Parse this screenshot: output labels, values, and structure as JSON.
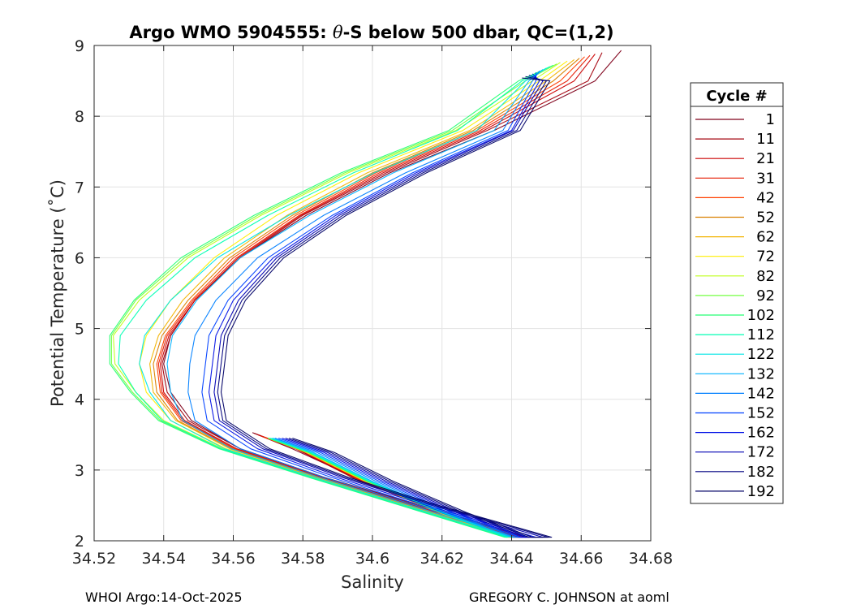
{
  "chart_data": {
    "type": "line",
    "title": "Argo WMO 5904555: θ-S below 500 dbar,  QC=(1,2)",
    "title_prefix": "Argo WMO 5904555: ",
    "title_theta": "θ",
    "title_suffix": "-S below 500 dbar,  QC=(1,2)",
    "xlabel": "Salinity",
    "ylabel": "Potential Temperature (˚C)",
    "xlim": [
      34.52,
      34.68
    ],
    "ylim": [
      2,
      9
    ],
    "x_ticks": [
      34.52,
      34.54,
      34.56,
      34.58,
      34.6,
      34.62,
      34.64,
      34.66,
      34.68
    ],
    "x_tick_labels": [
      "34.52",
      "34.54",
      "34.56",
      "34.58",
      "34.6",
      "34.62",
      "34.64",
      "34.66",
      "34.68"
    ],
    "y_ticks": [
      2,
      3,
      4,
      5,
      6,
      7,
      8,
      9
    ],
    "y_tick_labels": [
      "2",
      "3",
      "4",
      "5",
      "6",
      "7",
      "8",
      "9"
    ],
    "grid": true,
    "legend": {
      "title": "Cycle #",
      "placement": "right",
      "entries": [
        {
          "label": "1",
          "color": "#80001a"
        },
        {
          "label": "11",
          "color": "#a3000d"
        },
        {
          "label": "21",
          "color": "#cc0000"
        },
        {
          "label": "31",
          "color": "#e61a00"
        },
        {
          "label": "42",
          "color": "#ff4000"
        },
        {
          "label": "52",
          "color": "#d98000"
        },
        {
          "label": "62",
          "color": "#f2b300"
        },
        {
          "label": "72",
          "color": "#ffee00"
        },
        {
          "label": "82",
          "color": "#bfff1a"
        },
        {
          "label": "92",
          "color": "#73ff40"
        },
        {
          "label": "102",
          "color": "#26ff73"
        },
        {
          "label": "112",
          "color": "#00ffb3"
        },
        {
          "label": "122",
          "color": "#00e6e6"
        },
        {
          "label": "132",
          "color": "#00b3ff"
        },
        {
          "label": "142",
          "color": "#0080ff"
        },
        {
          "label": "152",
          "color": "#0040ff"
        },
        {
          "label": "162",
          "color": "#0010e6"
        },
        {
          "label": "172",
          "color": "#0000b3"
        },
        {
          "label": "182",
          "color": "#000080"
        },
        {
          "label": "192",
          "color": "#000066"
        }
      ]
    },
    "series": [
      {
        "name": "1",
        "x": [
          34.5655,
          34.577,
          34.597,
          34.6212,
          34.642,
          34.645,
          34.614,
          34.586,
          34.562,
          34.548,
          34.542,
          34.54,
          34.542,
          34.549,
          34.562,
          34.581,
          34.605,
          34.635,
          34.664,
          34.6715
        ],
        "y": [
          3.53,
          3.3,
          2.85,
          2.4,
          2.05,
          2.05,
          2.5,
          2.9,
          3.3,
          3.7,
          4.1,
          4.5,
          4.9,
          5.4,
          6.0,
          6.6,
          7.2,
          7.8,
          8.5,
          8.93
        ]
      },
      {
        "name": "11",
        "x": [
          34.566,
          34.578,
          34.596,
          34.62,
          34.641,
          34.644,
          34.613,
          34.586,
          34.562,
          34.547,
          34.541,
          34.5395,
          34.542,
          34.549,
          34.562,
          34.58,
          34.604,
          34.633,
          34.662,
          34.666
        ],
        "y": [
          3.52,
          3.3,
          2.85,
          2.4,
          2.05,
          2.05,
          2.5,
          2.9,
          3.3,
          3.7,
          4.1,
          4.5,
          4.9,
          5.4,
          6.0,
          6.6,
          7.2,
          7.8,
          8.5,
          8.9
        ]
      },
      {
        "name": "21",
        "x": [
          34.567,
          34.579,
          34.597,
          34.62,
          34.6405,
          34.643,
          34.612,
          34.5855,
          34.561,
          34.546,
          34.54,
          34.539,
          34.5415,
          34.549,
          34.5615,
          34.5795,
          34.603,
          34.632,
          34.658,
          34.664
        ],
        "y": [
          3.5,
          3.28,
          2.84,
          2.4,
          2.05,
          2.05,
          2.5,
          2.9,
          3.3,
          3.7,
          4.1,
          4.5,
          4.9,
          5.4,
          6.0,
          6.6,
          7.2,
          7.8,
          8.5,
          8.88
        ]
      },
      {
        "name": "31",
        "x": [
          34.568,
          34.58,
          34.5975,
          34.6195,
          34.64,
          34.642,
          34.6115,
          34.585,
          34.5605,
          34.5455,
          34.5395,
          34.5385,
          34.541,
          34.5485,
          34.561,
          34.579,
          34.602,
          34.631,
          34.656,
          34.6625
        ],
        "y": [
          3.48,
          3.27,
          2.84,
          2.4,
          2.05,
          2.05,
          2.5,
          2.9,
          3.3,
          3.7,
          4.1,
          4.5,
          4.9,
          5.4,
          6.0,
          6.6,
          7.2,
          7.8,
          8.5,
          8.86
        ]
      },
      {
        "name": "42",
        "x": [
          34.569,
          34.5805,
          34.5975,
          34.619,
          34.6395,
          34.641,
          34.611,
          34.5845,
          34.56,
          34.545,
          34.539,
          34.538,
          34.5405,
          34.548,
          34.56,
          34.578,
          34.601,
          34.63,
          34.654,
          34.661
        ],
        "y": [
          3.46,
          3.26,
          2.84,
          2.4,
          2.05,
          2.05,
          2.5,
          2.9,
          3.3,
          3.7,
          4.1,
          4.5,
          4.9,
          5.4,
          6.0,
          6.6,
          7.2,
          7.8,
          8.5,
          8.84
        ]
      },
      {
        "name": "52",
        "x": [
          34.57,
          34.581,
          34.598,
          34.619,
          34.639,
          34.6405,
          34.6105,
          34.584,
          34.5595,
          34.544,
          34.538,
          34.537,
          34.5395,
          34.547,
          34.559,
          34.577,
          34.6,
          34.629,
          34.652,
          34.6595
        ],
        "y": [
          3.45,
          3.25,
          2.84,
          2.4,
          2.05,
          2.05,
          2.5,
          2.9,
          3.3,
          3.7,
          4.1,
          4.5,
          4.9,
          5.4,
          6.0,
          6.6,
          7.2,
          7.8,
          8.5,
          8.82
        ]
      },
      {
        "name": "62",
        "x": [
          34.57,
          34.581,
          34.598,
          34.619,
          34.639,
          34.64,
          34.61,
          34.5835,
          34.559,
          34.5435,
          34.537,
          34.536,
          34.5385,
          34.5455,
          34.5575,
          34.5755,
          34.5985,
          34.628,
          34.65,
          34.658
        ],
        "y": [
          3.45,
          3.25,
          2.84,
          2.4,
          2.05,
          2.05,
          2.5,
          2.9,
          3.3,
          3.7,
          4.1,
          4.5,
          4.9,
          5.4,
          6.0,
          6.6,
          7.2,
          7.8,
          8.5,
          8.8
        ]
      },
      {
        "name": "72",
        "x": [
          34.57,
          34.581,
          34.598,
          34.619,
          34.6385,
          34.6395,
          34.6095,
          34.583,
          34.558,
          34.542,
          34.535,
          34.533,
          34.535,
          34.542,
          34.5545,
          34.5725,
          34.596,
          34.626,
          34.648,
          34.656
        ],
        "y": [
          3.45,
          3.25,
          2.84,
          2.4,
          2.05,
          2.05,
          2.5,
          2.9,
          3.3,
          3.7,
          4.1,
          4.5,
          4.9,
          5.4,
          6.0,
          6.6,
          7.2,
          7.8,
          8.5,
          8.78
        ]
      },
      {
        "name": "82",
        "x": [
          34.57,
          34.5815,
          34.5985,
          34.6195,
          34.6385,
          34.639,
          34.609,
          34.5825,
          34.557,
          34.54,
          34.532,
          34.526,
          34.5255,
          34.533,
          34.547,
          34.568,
          34.593,
          34.624,
          34.646,
          34.654
        ],
        "y": [
          3.45,
          3.25,
          2.84,
          2.4,
          2.05,
          2.05,
          2.5,
          2.9,
          3.3,
          3.7,
          4.1,
          4.5,
          4.9,
          5.4,
          6.0,
          6.6,
          7.2,
          7.8,
          8.5,
          8.76
        ]
      },
      {
        "name": "92",
        "x": [
          34.57,
          34.5815,
          34.5985,
          34.6195,
          34.6385,
          34.6385,
          34.6085,
          34.582,
          34.5565,
          34.539,
          34.531,
          34.525,
          34.525,
          34.532,
          34.546,
          34.567,
          34.592,
          34.623,
          34.644,
          34.653
        ],
        "y": [
          3.45,
          3.25,
          2.84,
          2.4,
          2.05,
          2.05,
          2.5,
          2.9,
          3.3,
          3.7,
          4.1,
          4.5,
          4.9,
          5.4,
          6.0,
          6.6,
          7.2,
          7.8,
          8.5,
          8.74
        ]
      },
      {
        "name": "102",
        "x": [
          34.57,
          34.5815,
          34.5985,
          34.6195,
          34.6385,
          34.638,
          34.608,
          34.5815,
          34.556,
          34.5385,
          34.5305,
          34.5245,
          34.5245,
          34.5315,
          34.545,
          34.566,
          34.591,
          34.622,
          34.642,
          34.652
        ],
        "y": [
          3.45,
          3.25,
          2.84,
          2.4,
          2.05,
          2.05,
          2.5,
          2.9,
          3.3,
          3.7,
          4.1,
          4.5,
          4.9,
          5.4,
          6.0,
          6.6,
          7.2,
          7.8,
          8.5,
          8.72
        ]
      },
      {
        "name": "112",
        "x": [
          34.5705,
          34.582,
          34.599,
          34.62,
          34.639,
          34.6385,
          34.6085,
          34.582,
          34.5565,
          34.5395,
          34.532,
          34.527,
          34.5275,
          34.535,
          34.549,
          34.57,
          34.5945,
          34.6245,
          34.643,
          34.651
        ],
        "y": [
          3.45,
          3.25,
          2.84,
          2.4,
          2.05,
          2.05,
          2.5,
          2.9,
          3.3,
          3.7,
          4.1,
          4.5,
          4.9,
          5.4,
          6.0,
          6.6,
          7.2,
          7.8,
          8.5,
          8.7
        ]
      },
      {
        "name": "122",
        "x": [
          34.571,
          34.5825,
          34.5995,
          34.6205,
          34.6395,
          34.6395,
          34.6095,
          34.583,
          34.5575,
          34.542,
          34.536,
          34.533,
          34.5345,
          34.542,
          34.5555,
          34.576,
          34.6005,
          34.63,
          34.644,
          34.65
        ],
        "y": [
          3.45,
          3.25,
          2.84,
          2.4,
          2.05,
          2.05,
          2.5,
          2.9,
          3.3,
          3.7,
          4.1,
          4.5,
          4.9,
          5.4,
          6.0,
          6.6,
          7.2,
          7.8,
          8.5,
          8.68
        ]
      },
      {
        "name": "132",
        "x": [
          34.5715,
          34.583,
          34.6,
          34.621,
          34.64,
          34.641,
          34.611,
          34.5845,
          34.5595,
          34.5455,
          34.542,
          34.541,
          34.5425,
          34.5495,
          34.562,
          34.582,
          34.606,
          34.635,
          34.645,
          34.649
        ],
        "y": [
          3.45,
          3.25,
          2.84,
          2.4,
          2.05,
          2.05,
          2.5,
          2.9,
          3.3,
          3.7,
          4.1,
          4.5,
          4.9,
          5.4,
          6.0,
          6.6,
          7.2,
          7.8,
          8.5,
          8.66
        ]
      },
      {
        "name": "142",
        "x": [
          34.572,
          34.584,
          34.601,
          34.622,
          34.641,
          34.643,
          34.6125,
          34.586,
          34.562,
          34.549,
          34.547,
          34.5475,
          34.549,
          34.555,
          34.567,
          34.586,
          34.6095,
          34.6375,
          34.646,
          34.648
        ],
        "y": [
          3.45,
          3.25,
          2.84,
          2.4,
          2.05,
          2.05,
          2.5,
          2.9,
          3.3,
          3.7,
          4.1,
          4.5,
          4.9,
          5.4,
          6.0,
          6.6,
          7.2,
          7.8,
          8.5,
          8.64
        ]
      },
      {
        "name": "152",
        "x": [
          34.573,
          34.585,
          34.602,
          34.623,
          34.642,
          34.645,
          34.614,
          34.588,
          34.565,
          34.5525,
          34.551,
          34.552,
          34.553,
          34.5585,
          34.57,
          34.5885,
          34.6115,
          34.639,
          34.647,
          34.647
        ],
        "y": [
          3.45,
          3.25,
          2.84,
          2.4,
          2.05,
          2.05,
          2.5,
          2.9,
          3.3,
          3.7,
          4.1,
          4.5,
          4.9,
          5.4,
          6.0,
          6.6,
          7.2,
          7.8,
          8.5,
          8.62
        ]
      },
      {
        "name": "162",
        "x": [
          34.574,
          34.586,
          34.603,
          34.624,
          34.643,
          34.647,
          34.6155,
          34.5895,
          34.567,
          34.5545,
          34.553,
          34.554,
          34.555,
          34.56,
          34.5715,
          34.5895,
          34.6125,
          34.64,
          34.648,
          34.646
        ],
        "y": [
          3.45,
          3.25,
          2.84,
          2.4,
          2.05,
          2.05,
          2.5,
          2.9,
          3.3,
          3.7,
          4.1,
          4.5,
          4.9,
          5.4,
          6.0,
          6.6,
          7.2,
          7.8,
          8.5,
          8.6
        ]
      },
      {
        "name": "172",
        "x": [
          34.575,
          34.587,
          34.604,
          34.625,
          34.644,
          34.649,
          34.617,
          34.591,
          34.5685,
          34.556,
          34.5545,
          34.5555,
          34.5565,
          34.5615,
          34.5725,
          34.5905,
          34.6135,
          34.6405,
          34.649,
          34.645
        ],
        "y": [
          3.45,
          3.25,
          2.84,
          2.4,
          2.05,
          2.05,
          2.5,
          2.9,
          3.3,
          3.7,
          4.1,
          4.5,
          4.9,
          5.4,
          6.0,
          6.6,
          7.2,
          7.8,
          8.5,
          8.58
        ]
      },
      {
        "name": "182",
        "x": [
          34.576,
          34.588,
          34.605,
          34.626,
          34.645,
          34.6505,
          34.618,
          34.592,
          34.5695,
          34.557,
          34.5555,
          34.5565,
          34.5575,
          34.5625,
          34.5735,
          34.5915,
          34.6145,
          34.6415,
          34.65,
          34.644
        ],
        "y": [
          3.45,
          3.25,
          2.84,
          2.4,
          2.05,
          2.05,
          2.5,
          2.9,
          3.3,
          3.7,
          4.1,
          4.5,
          4.9,
          5.4,
          6.0,
          6.6,
          7.2,
          7.8,
          8.5,
          8.56
        ]
      },
      {
        "name": "192",
        "x": [
          34.577,
          34.589,
          34.606,
          34.627,
          34.646,
          34.6515,
          34.619,
          34.593,
          34.5705,
          34.558,
          34.5565,
          34.5575,
          34.5585,
          34.5635,
          34.5745,
          34.5925,
          34.6155,
          34.6425,
          34.651,
          34.643
        ],
        "y": [
          3.45,
          3.25,
          2.84,
          2.4,
          2.05,
          2.05,
          2.5,
          2.9,
          3.3,
          3.7,
          4.1,
          4.5,
          4.9,
          5.4,
          6.0,
          6.6,
          7.2,
          7.8,
          8.5,
          8.54
        ]
      }
    ]
  },
  "footer": {
    "left": "WHOI Argo:14-Oct-2025",
    "right": "GREGORY C. JOHNSON at aoml"
  }
}
